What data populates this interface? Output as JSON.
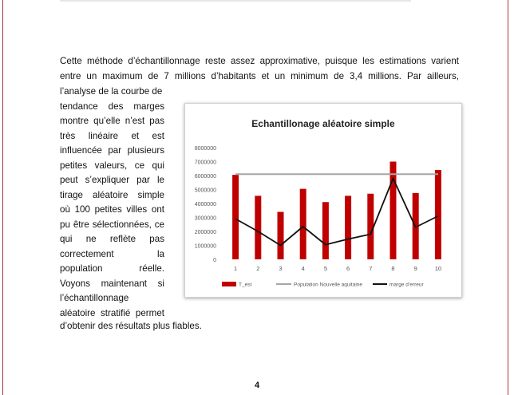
{
  "paragraph1": {
    "line1": "Cette méthode d’échantillonnage reste assez approximative, puisque les estimations varient",
    "line2": "entre un maximum de 7 millions d’habitants et un minimum de 3,4 millions. Par ailleurs,"
  },
  "paragraph2": {
    "lines": [
      "l’analyse de la courbe de",
      "tendance des marges",
      "montre qu’elle n’est pas",
      "très linéaire et est",
      "influencée par plusieurs",
      "petites valeurs, ce qui",
      "peut s’expliquer par le",
      "tirage aléatoire simple",
      "où 100 petites villes ont",
      "pu être sélectionnées, ce",
      "qui ne reflète pas",
      "correctement la",
      "population réelle.",
      "Voyons maintenant si",
      "l’échantillonnage",
      "aléatoire stratifié permet"
    ],
    "last_line": "d’obtenir des résultats plus fiables."
  },
  "page_number": "4",
  "colors": {
    "border": "#a8343a",
    "bars": "#c00000",
    "population_line": "#a6a6a6",
    "error_line": "#111111"
  },
  "chart_data": {
    "type": "bar",
    "title": "Echantillonage aléatoire simple",
    "categories": [
      "1",
      "2",
      "3",
      "4",
      "5",
      "6",
      "7",
      "8",
      "9",
      "10"
    ],
    "ylim": [
      0,
      8000000
    ],
    "yticks": [
      "0",
      "1000000",
      "2000000",
      "3000000",
      "4000000",
      "5000000",
      "6000000",
      "7000000",
      "8000000"
    ],
    "grid": false,
    "legend_position": "bottom",
    "series": [
      {
        "name": "T_est",
        "type": "bar",
        "values": [
          6050000,
          4550000,
          3400000,
          5050000,
          4100000,
          4550000,
          4700000,
          7000000,
          4750000,
          6400000
        ]
      },
      {
        "name": "Population Nouvelle aquitaine",
        "type": "line",
        "values": [
          6100000,
          6100000,
          6100000,
          6100000,
          6100000,
          6100000,
          6100000,
          6100000,
          6100000,
          6100000
        ]
      },
      {
        "name": "marge d’erreur",
        "type": "line",
        "values": [
          2900000,
          2000000,
          1000000,
          2350000,
          1050000,
          1450000,
          1800000,
          5800000,
          2300000,
          3100000
        ]
      }
    ]
  }
}
